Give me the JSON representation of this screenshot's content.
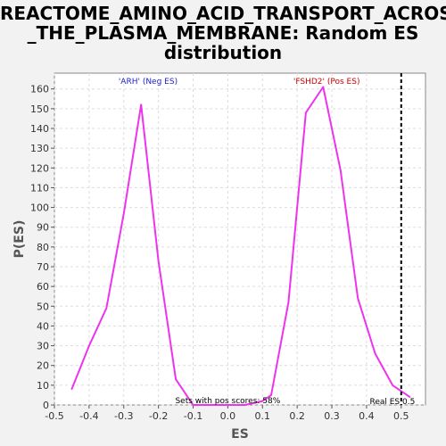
{
  "chart_title": {
    "line1": "REACTOME_AMINO_ACID_TRANSPORT_ACROSS",
    "line2": "_THE_PLASMA_MEMBRANE: Random ES",
    "line3": "distribution"
  },
  "chart_data": {
    "type": "line",
    "title": "REACTOME_AMINO_ACID_TRANSPORT_ACROSS_THE_PLASMA_MEMBRANE: Random ES distribution",
    "xlabel": "ES",
    "ylabel": "P(ES)",
    "xlim": [
      -0.5,
      0.57
    ],
    "ylim": [
      0,
      168
    ],
    "x_ticks": [
      "-0.5",
      "-0.4",
      "-0.3",
      "-0.2",
      "-0.1",
      "0.0",
      "0.1",
      "0.2",
      "0.3",
      "0.4",
      "0.5"
    ],
    "y_ticks": [
      "0",
      "10",
      "20",
      "30",
      "40",
      "50",
      "60",
      "70",
      "80",
      "90",
      "100",
      "110",
      "120",
      "130",
      "140",
      "150",
      "160"
    ],
    "grid": true,
    "series": [
      {
        "color": "#ee33ee",
        "x": [
          -0.45,
          -0.4,
          -0.35,
          -0.3,
          -0.25,
          -0.2,
          -0.15,
          -0.1,
          -0.05,
          0.0,
          0.05,
          0.1,
          0.125,
          0.175,
          0.225,
          0.275,
          0.325,
          0.375,
          0.425,
          0.475,
          0.525
        ],
        "y": [
          8,
          30,
          49,
          97,
          152,
          73,
          13,
          0,
          0,
          0,
          0,
          2,
          5,
          52,
          148,
          161,
          119,
          54,
          26,
          10,
          4
        ]
      }
    ],
    "annotations": [
      {
        "text": "'ARH' (Neg ES)",
        "color": "#2222cc"
      },
      {
        "text": "'FSHD2' (Pos ES)",
        "color": "#cc0000"
      },
      {
        "text": "Sets with pos scores: 58%",
        "color": "#000000"
      },
      {
        "text": "Real ES 0.5",
        "color": "#000000"
      }
    ],
    "real_es": 0.5
  }
}
